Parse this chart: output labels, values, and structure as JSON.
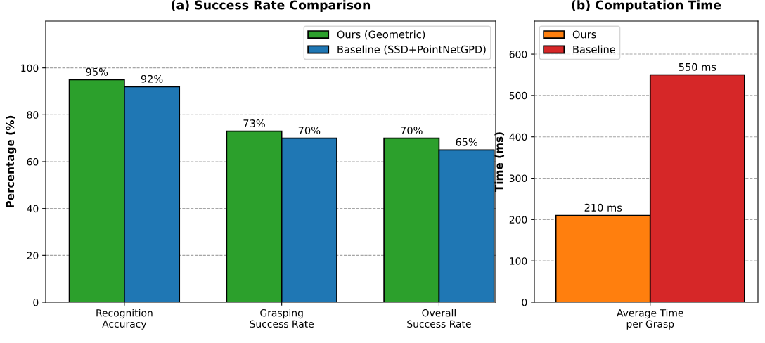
{
  "chart_data": [
    {
      "type": "bar",
      "title": "(a) Success Rate Comparison",
      "ylabel": "Percentage (%)",
      "categories": [
        "Recognition\nAccuracy",
        "Grasping\nSuccess Rate",
        "Overall\nSuccess Rate"
      ],
      "series": [
        {
          "name": "Ours (Geometric)",
          "color": "#2ca02c",
          "values": [
            95,
            73,
            70
          ],
          "value_labels": [
            "95%",
            "73%",
            "70%"
          ]
        },
        {
          "name": "Baseline (SSD+PointNetGPD)",
          "color": "#1f77b4",
          "values": [
            92,
            70,
            65
          ],
          "value_labels": [
            "92%",
            "70%",
            "65%"
          ]
        }
      ],
      "ylim": [
        0,
        120
      ],
      "yticks": [
        0,
        20,
        40,
        60,
        80,
        100
      ],
      "grid": "y",
      "legend": "top right"
    },
    {
      "type": "bar",
      "title": "(b) Computation Time",
      "ylabel": "Time (ms)",
      "categories": [
        "Average Time\nper Grasp"
      ],
      "series": [
        {
          "name": "Ours",
          "color": "#ff7f0e",
          "values": [
            210
          ],
          "value_labels": [
            "210 ms"
          ]
        },
        {
          "name": "Baseline",
          "color": "#d62728",
          "values": [
            550
          ],
          "value_labels": [
            "550 ms"
          ]
        }
      ],
      "ylim": [
        0,
        680
      ],
      "yticks": [
        0,
        100,
        200,
        300,
        400,
        500,
        600
      ],
      "grid": "y",
      "legend": "top left"
    }
  ]
}
